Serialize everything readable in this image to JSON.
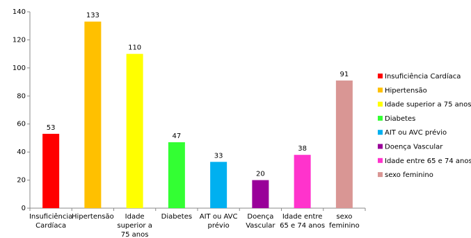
{
  "chart_data": {
    "type": "bar",
    "categories": [
      "Insuficiência Cardíaca",
      "Hipertensão",
      "Idade superior a 75 anos",
      "Diabetes",
      "AIT ou AVC prévio",
      "Doença Vascular",
      "Idade entre 65 e 74 anos",
      "sexo feminino"
    ],
    "values": [
      53,
      133,
      110,
      47,
      33,
      20,
      38,
      91
    ],
    "colors": [
      "#ff0000",
      "#ffc000",
      "#ffff00",
      "#33ff33",
      "#00b0f0",
      "#990099",
      "#ff33cc",
      "#d99694"
    ],
    "ylim": [
      0,
      140
    ],
    "yticks": [
      0,
      20,
      40,
      60,
      80,
      100,
      120,
      140
    ],
    "legend": "right"
  }
}
